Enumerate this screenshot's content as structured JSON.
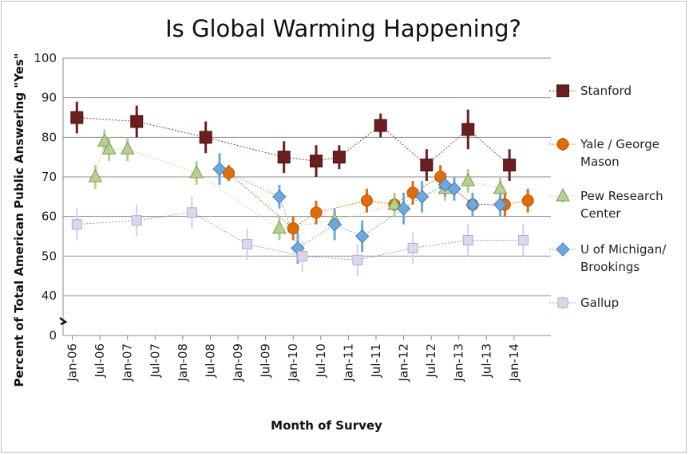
{
  "chart_data": {
    "type": "line",
    "title": "Is Global Warming Happening?",
    "xlabel": "Month of Survey",
    "ylabel": "Percent of Total American Public Answering \"Yes\"",
    "x_range": [
      "2005-11",
      "2014-09"
    ],
    "ylim": [
      0,
      100
    ],
    "y_axis_break": [
      0,
      40
    ],
    "yticks": [
      "0",
      "40",
      "50",
      "60",
      "70",
      "80",
      "90",
      "100"
    ],
    "xticks": [
      {
        "date": "2006-01",
        "label": "Jan-06"
      },
      {
        "date": "2006-07",
        "label": "Jul-06"
      },
      {
        "date": "2007-01",
        "label": "Jan-07"
      },
      {
        "date": "2007-07",
        "label": "Jul-07"
      },
      {
        "date": "2008-01",
        "label": "Jan-08"
      },
      {
        "date": "2008-07",
        "label": "Jul-08"
      },
      {
        "date": "2009-01",
        "label": "Jan-09"
      },
      {
        "date": "2009-07",
        "label": "Jul-09"
      },
      {
        "date": "2010-01",
        "label": "Jan-10"
      },
      {
        "date": "2010-07",
        "label": "Jul-10"
      },
      {
        "date": "2011-01",
        "label": "Jan-11"
      },
      {
        "date": "2011-07",
        "label": "Jul-11"
      },
      {
        "date": "2012-01",
        "label": "Jan-12"
      },
      {
        "date": "2012-07",
        "label": "Jul-12"
      },
      {
        "date": "2013-01",
        "label": "Jan-13"
      },
      {
        "date": "2013-07",
        "label": "Jul-13"
      },
      {
        "date": "2014-01",
        "label": "Jan-14"
      }
    ],
    "grid": "horizontal",
    "legend_position": "right",
    "series": [
      {
        "name": "Stanford",
        "marker": "square",
        "color": "#6b1f1f",
        "line": "#8b3a3a",
        "points": [
          {
            "date": "2006-02",
            "y": 85,
            "err": 4
          },
          {
            "date": "2007-03",
            "y": 84,
            "err": 4
          },
          {
            "date": "2008-06",
            "y": 80,
            "err": 4
          },
          {
            "date": "2009-11",
            "y": 75,
            "err": 4
          },
          {
            "date": "2010-06",
            "y": 74,
            "err": 4
          },
          {
            "date": "2010-11",
            "y": 75,
            "err": 3
          },
          {
            "date": "2011-08",
            "y": 83,
            "err": 3
          },
          {
            "date": "2012-06",
            "y": 73,
            "err": 4
          },
          {
            "date": "2013-03",
            "y": 82,
            "err": 5
          },
          {
            "date": "2013-12",
            "y": 73,
            "err": 4
          }
        ]
      },
      {
        "name": "Yale / George Mason",
        "marker": "circle",
        "color": "#e36c0a",
        "line": "#e36c0a",
        "points": [
          {
            "date": "2008-11",
            "y": 71,
            "err": 2
          },
          {
            "date": "2010-01",
            "y": 57,
            "err": 3
          },
          {
            "date": "2010-06",
            "y": 61,
            "err": 3
          },
          {
            "date": "2011-05",
            "y": 64,
            "err": 3
          },
          {
            "date": "2011-11",
            "y": 63,
            "err": 3
          },
          {
            "date": "2012-03",
            "y": 66,
            "err": 3
          },
          {
            "date": "2012-09",
            "y": 70,
            "err": 3
          },
          {
            "date": "2013-04",
            "y": 63,
            "err": 3
          },
          {
            "date": "2013-11",
            "y": 63,
            "err": 3
          },
          {
            "date": "2014-04",
            "y": 64,
            "err": 3
          }
        ]
      },
      {
        "name": "Pew Research Center",
        "marker": "triangle",
        "color": "#b5d08f",
        "line": "#c3d69b",
        "points": [
          {
            "date": "2006-06",
            "y": 70,
            "err": 3
          },
          {
            "date": "2006-08",
            "y": 79,
            "err": 3
          },
          {
            "date": "2006-09",
            "y": 77,
            "err": 3
          },
          {
            "date": "2007-01",
            "y": 77,
            "err": 3
          },
          {
            "date": "2008-04",
            "y": 71,
            "err": 3
          },
          {
            "date": "2009-10",
            "y": 57,
            "err": 3
          },
          {
            "date": "2010-10",
            "y": 59,
            "err": 3
          },
          {
            "date": "2011-11",
            "y": 63,
            "err": 3
          },
          {
            "date": "2012-10",
            "y": 67,
            "err": 3
          },
          {
            "date": "2013-03",
            "y": 69,
            "err": 3
          },
          {
            "date": "2013-10",
            "y": 67,
            "err": 3
          }
        ]
      },
      {
        "name": "U of Michigan/ Brookings",
        "marker": "diamond",
        "color": "#6fa8dc",
        "line": "#6fa8dc",
        "points": [
          {
            "date": "2008-09",
            "y": 72,
            "err": 4
          },
          {
            "date": "2009-10",
            "y": 65,
            "err": 3
          },
          {
            "date": "2010-02",
            "y": 52,
            "err": 4
          },
          {
            "date": "2010-10",
            "y": 58,
            "err": 4
          },
          {
            "date": "2011-04",
            "y": 55,
            "err": 4
          },
          {
            "date": "2012-01",
            "y": 62,
            "err": 4
          },
          {
            "date": "2012-05",
            "y": 65,
            "err": 4
          },
          {
            "date": "2012-10",
            "y": 68,
            "err": 3
          },
          {
            "date": "2012-12",
            "y": 67,
            "err": 3
          },
          {
            "date": "2013-04",
            "y": 63,
            "err": 3
          },
          {
            "date": "2013-10",
            "y": 63,
            "err": 3
          }
        ]
      },
      {
        "name": "Gallup",
        "marker": "square",
        "color": "#ddd5ea",
        "line": "#7fa6c9",
        "points": [
          {
            "date": "2006-02",
            "y": 58,
            "err": 4
          },
          {
            "date": "2007-03",
            "y": 59,
            "err": 4
          },
          {
            "date": "2008-03",
            "y": 61,
            "err": 4
          },
          {
            "date": "2009-03",
            "y": 53,
            "err": 4
          },
          {
            "date": "2010-03",
            "y": 50,
            "err": 4
          },
          {
            "date": "2011-03",
            "y": 49,
            "err": 4
          },
          {
            "date": "2012-03",
            "y": 52,
            "err": 4
          },
          {
            "date": "2013-03",
            "y": 54,
            "err": 4
          },
          {
            "date": "2014-03",
            "y": 54,
            "err": 4
          }
        ]
      }
    ]
  }
}
